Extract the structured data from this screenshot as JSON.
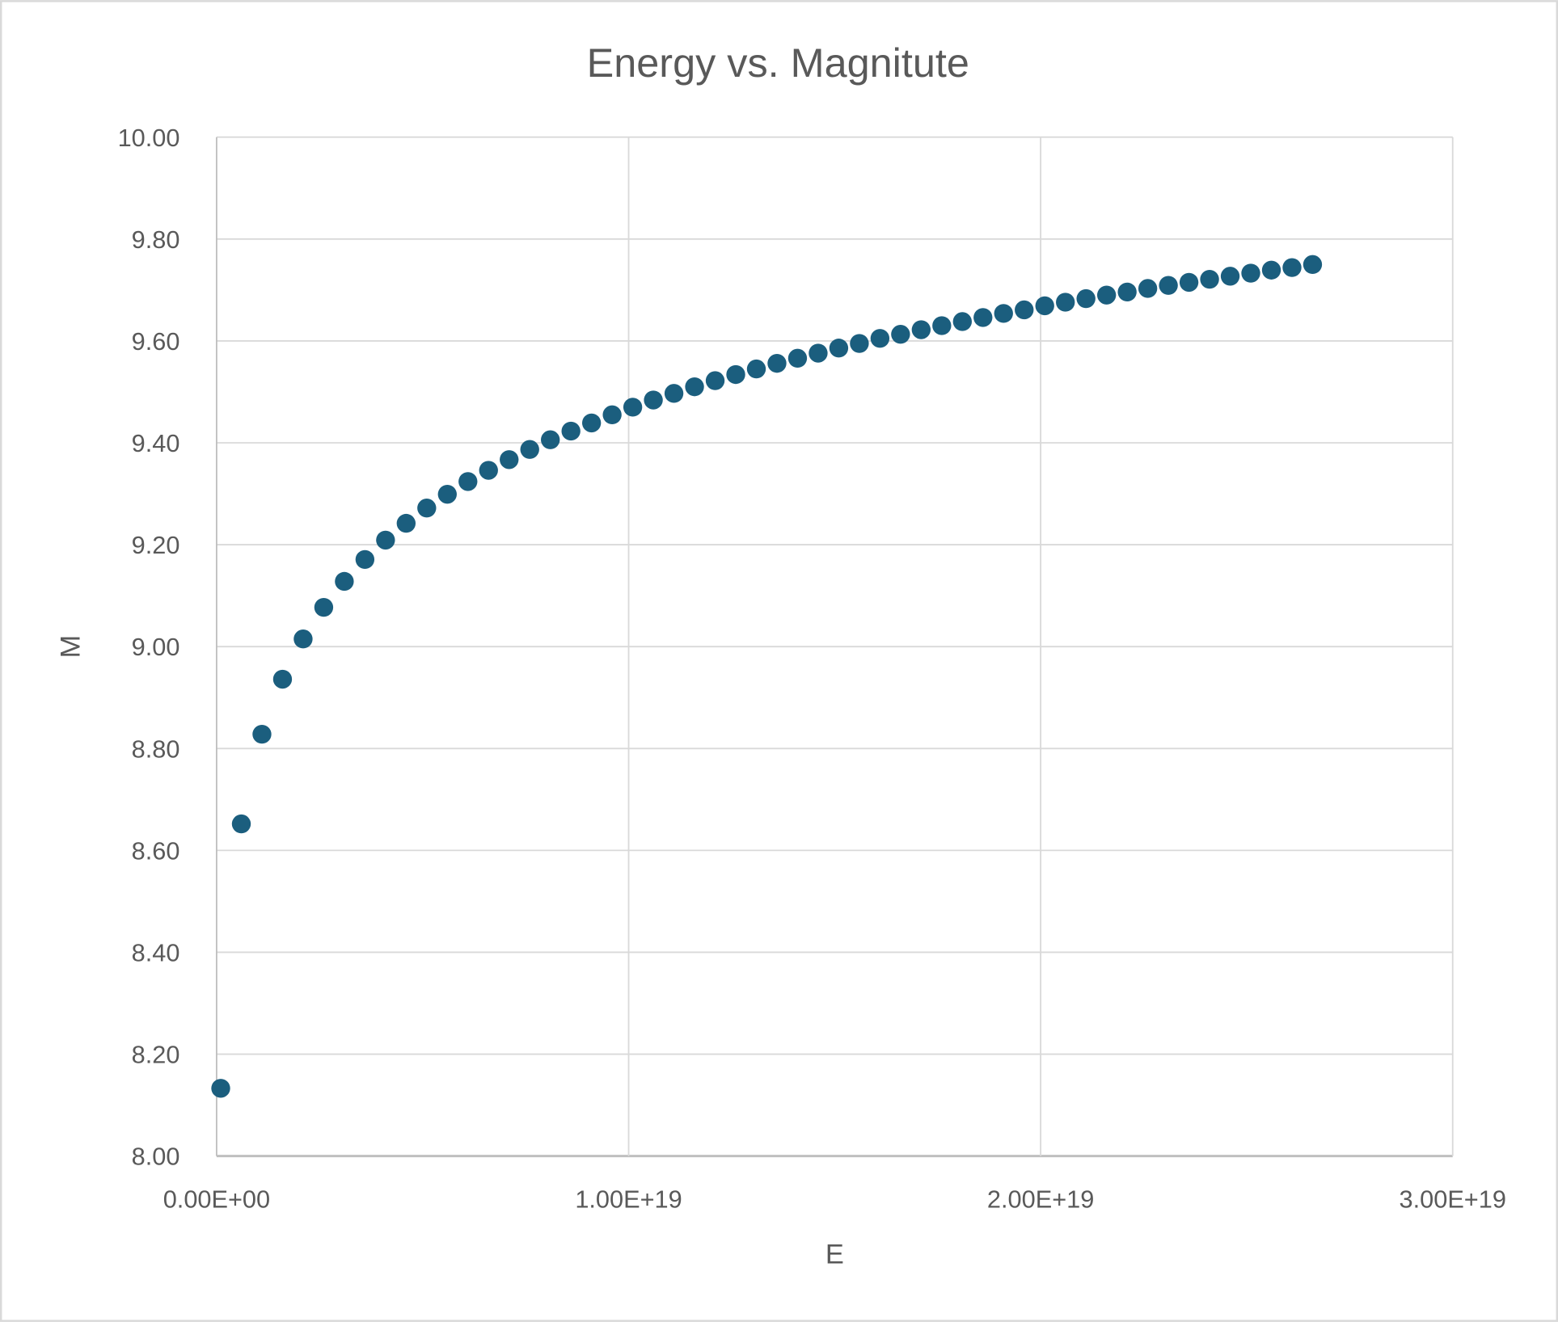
{
  "chart_data": {
    "type": "scatter",
    "title": "Energy vs. Magnitute",
    "xlabel": "E",
    "ylabel": "M",
    "xlim": [
      0,
      3e+19
    ],
    "ylim": [
      8.0,
      10.0
    ],
    "xticks": [
      0,
      1e+19,
      2e+19,
      3e+19
    ],
    "xtick_labels": [
      "0.00E+00",
      "1.00E+19",
      "2.00E+19",
      "3.00E+19"
    ],
    "yticks": [
      8.0,
      8.2,
      8.4,
      8.6,
      8.8,
      9.0,
      9.2,
      9.4,
      9.6,
      9.8,
      10.0
    ],
    "ytick_labels": [
      "8.00",
      "8.20",
      "8.40",
      "8.60",
      "8.80",
      "9.00",
      "9.20",
      "9.40",
      "9.60",
      "9.80",
      "10.00"
    ],
    "grid": true,
    "legend": "none",
    "marker_color": "#1B5E7E",
    "series": [
      {
        "name": "M",
        "x": [
          1e+17,
          6e+17,
          1.1e+18,
          1.6e+18,
          2.1e+18,
          2.6e+18,
          3.1e+18,
          3.6e+18,
          4.1e+18,
          4.6e+18,
          5.1e+18,
          5.6e+18,
          6.1e+18,
          6.6e+18,
          7.1e+18,
          7.6e+18,
          8.1e+18,
          8.6e+18,
          9.1e+18,
          9.6e+18,
          1.01e+19,
          1.06e+19,
          1.11e+19,
          1.16e+19,
          1.21e+19,
          1.26e+19,
          1.31e+19,
          1.36e+19,
          1.41e+19,
          1.46e+19,
          1.51e+19,
          1.56e+19,
          1.61e+19,
          1.66e+19,
          1.71e+19,
          1.76e+19,
          1.81e+19,
          1.86e+19,
          1.91e+19,
          1.96e+19,
          2.01e+19,
          2.06e+19,
          2.11e+19,
          2.16e+19,
          2.21e+19,
          2.26e+19,
          2.31e+19,
          2.36e+19,
          2.41e+19,
          2.46e+19,
          2.51e+19,
          2.56e+19,
          2.61e+19,
          2.66e+19
        ],
        "y": [
          8.133,
          8.652,
          8.828,
          8.936,
          9.015,
          9.077,
          9.128,
          9.171,
          9.209,
          9.242,
          9.272,
          9.299,
          9.324,
          9.346,
          9.367,
          9.387,
          9.406,
          9.423,
          9.439,
          9.455,
          9.47,
          9.484,
          9.497,
          9.51,
          9.522,
          9.534,
          9.545,
          9.556,
          9.566,
          9.576,
          9.586,
          9.595,
          9.605,
          9.613,
          9.622,
          9.63,
          9.638,
          9.646,
          9.654,
          9.661,
          9.669,
          9.676,
          9.683,
          9.69,
          9.696,
          9.703,
          9.709,
          9.715,
          9.721,
          9.727,
          9.733,
          9.739,
          9.744,
          9.75
        ]
      }
    ]
  }
}
